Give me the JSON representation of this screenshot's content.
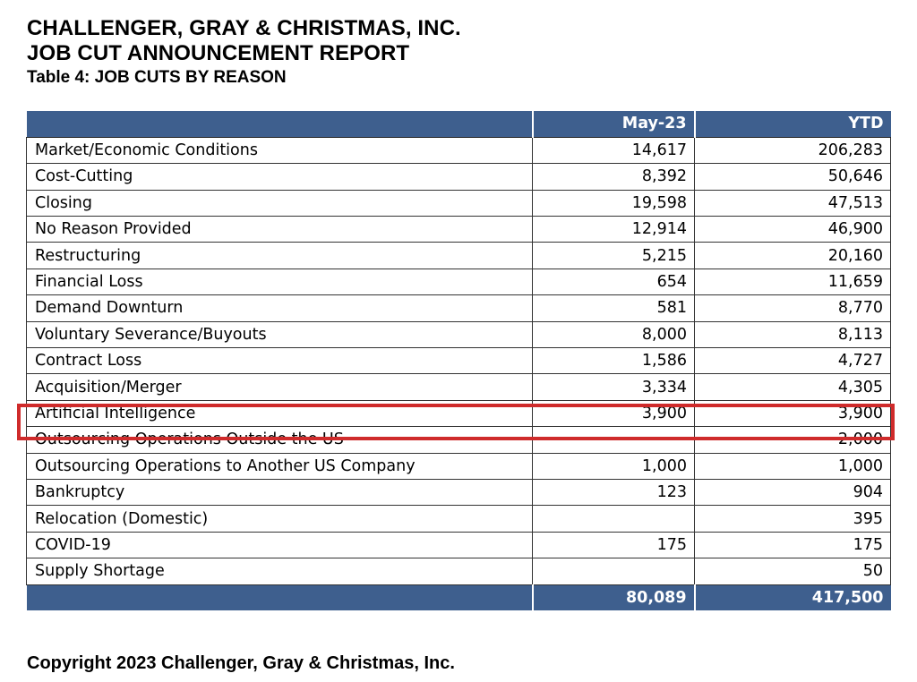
{
  "header": {
    "company": "CHALLENGER, GRAY & CHRISTMAS, INC.",
    "report": "JOB CUT ANNOUNCEMENT REPORT",
    "table_title": "Table 4: JOB CUTS BY REASON"
  },
  "table": {
    "columns": [
      "",
      "May-23",
      "YTD"
    ],
    "rows": [
      {
        "reason": "Market/Economic Conditions",
        "month": "14,617",
        "ytd": "206,283"
      },
      {
        "reason": "Cost-Cutting",
        "month": "8,392",
        "ytd": "50,646"
      },
      {
        "reason": "Closing",
        "month": "19,598",
        "ytd": "47,513"
      },
      {
        "reason": "No Reason Provided",
        "month": "12,914",
        "ytd": "46,900"
      },
      {
        "reason": "Restructuring",
        "month": "5,215",
        "ytd": "20,160"
      },
      {
        "reason": "Financial Loss",
        "month": "654",
        "ytd": "11,659"
      },
      {
        "reason": "Demand Downturn",
        "month": "581",
        "ytd": "8,770"
      },
      {
        "reason": "Voluntary Severance/Buyouts",
        "month": "8,000",
        "ytd": "8,113"
      },
      {
        "reason": "Contract Loss",
        "month": "1,586",
        "ytd": "4,727"
      },
      {
        "reason": "Acquisition/Merger",
        "month": "3,334",
        "ytd": "4,305"
      },
      {
        "reason": "Artificial Intelligence",
        "month": "3,900",
        "ytd": "3,900"
      },
      {
        "reason": "Outsourcing Operations Outside the US",
        "month": "",
        "ytd": "2,000"
      },
      {
        "reason": "Outsourcing Operations to Another US Company",
        "month": "1,000",
        "ytd": "1,000"
      },
      {
        "reason": "Bankruptcy",
        "month": "123",
        "ytd": "904"
      },
      {
        "reason": "Relocation (Domestic)",
        "month": "",
        "ytd": "395"
      },
      {
        "reason": "COVID-19",
        "month": "175",
        "ytd": "175"
      },
      {
        "reason": "Supply Shortage",
        "month": "",
        "ytd": "50"
      }
    ],
    "totals": {
      "label": "",
      "month": "80,089",
      "ytd": "417,500"
    }
  },
  "highlight": {
    "row": "Artificial Intelligence",
    "color": "#cf2b2b"
  },
  "colors": {
    "header_fill": "#3e5f8e",
    "header_text": "#ffffff"
  },
  "footer": {
    "copyright": "Copyright 2023 Challenger, Gray & Christmas, Inc."
  }
}
